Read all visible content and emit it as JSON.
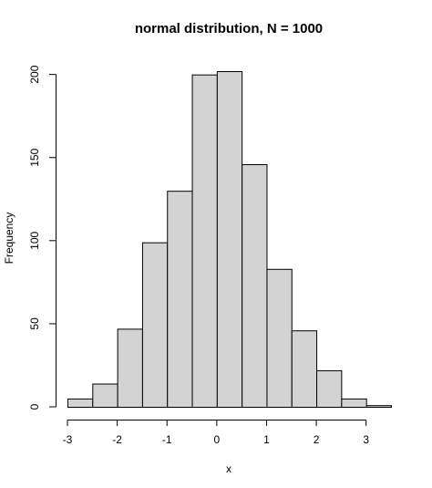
{
  "chart_data": {
    "type": "bar",
    "title": "normal distribution, N = 1000",
    "xlabel": "x",
    "ylabel": "Frequency",
    "bins": [
      {
        "start": -3.0,
        "end": -2.5,
        "count": 5
      },
      {
        "start": -2.5,
        "end": -2.0,
        "count": 14
      },
      {
        "start": -2.0,
        "end": -1.5,
        "count": 47
      },
      {
        "start": -1.5,
        "end": -1.0,
        "count": 99
      },
      {
        "start": -1.0,
        "end": -0.5,
        "count": 130
      },
      {
        "start": -0.5,
        "end": 0.0,
        "count": 200
      },
      {
        "start": 0.0,
        "end": 0.5,
        "count": 202
      },
      {
        "start": 0.5,
        "end": 1.0,
        "count": 146
      },
      {
        "start": 1.0,
        "end": 1.5,
        "count": 83
      },
      {
        "start": 1.5,
        "end": 2.0,
        "count": 46
      },
      {
        "start": 2.0,
        "end": 2.5,
        "count": 22
      },
      {
        "start": 2.5,
        "end": 3.0,
        "count": 5
      },
      {
        "start": 3.0,
        "end": 3.5,
        "count": 1
      }
    ],
    "xticks": [
      -3,
      -2,
      -1,
      0,
      1,
      2,
      3
    ],
    "yticks": [
      0,
      50,
      100,
      150,
      200
    ],
    "xlim": [
      -3,
      3.5
    ],
    "ylim": [
      0,
      202
    ],
    "bar_color": "#d3d3d3",
    "edge_color": "#000000",
    "grid": false
  }
}
